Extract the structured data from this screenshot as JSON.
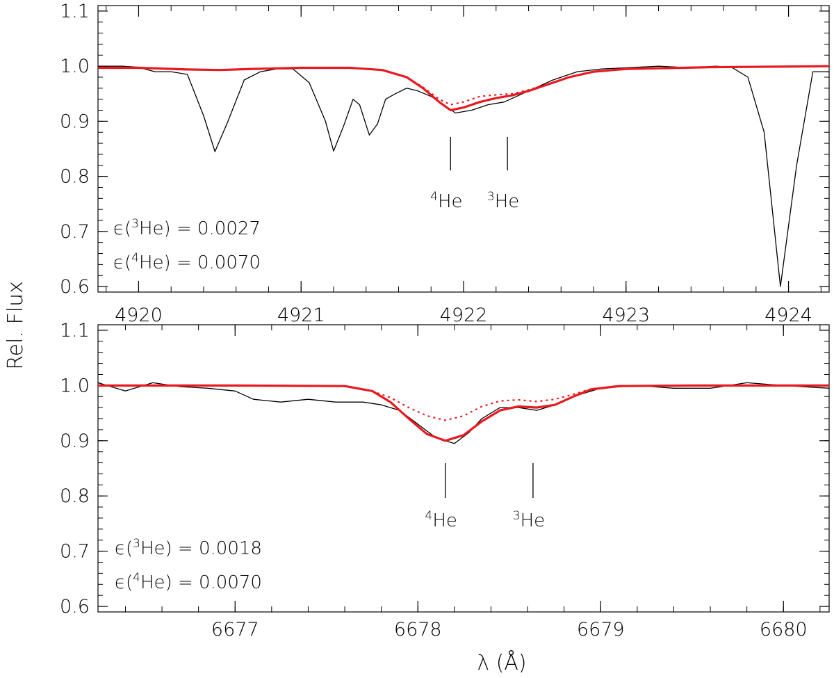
{
  "colors": {
    "observed": "#000000",
    "model": "#e8191f",
    "axis": "#000000",
    "background": "#ffffff"
  },
  "labels": {
    "ylabel": "Rel. Flux",
    "xlabel": "λ  (Å)"
  },
  "chart_data": [
    {
      "type": "line",
      "panel": "top",
      "ylabel": "Rel. Flux",
      "xlim": [
        4919.75,
        4924.25
      ],
      "ylim": [
        0.59,
        1.11
      ],
      "xticks": [
        4920,
        4921,
        4922,
        4923,
        4924
      ],
      "xtick_labels": [
        "4920",
        "4921",
        "4922",
        "4923",
        "4924"
      ],
      "xtick_position": "top",
      "yticks": [
        0.6,
        0.7,
        0.8,
        0.9,
        1.0,
        1.1
      ],
      "ytick_labels": [
        "0.6",
        "0.7",
        "0.8",
        "0.9",
        "1.0",
        "1.1"
      ],
      "line_markers": [
        {
          "x": 4921.92,
          "sup": "4",
          "label": "He"
        },
        {
          "x": 4922.27,
          "sup": "3",
          "label": "He"
        }
      ],
      "annotations": [
        {
          "prefix": "ϵ(",
          "sup": "3",
          "suffix": "He) = 0.0027"
        },
        {
          "prefix": "ϵ(",
          "sup": "4",
          "suffix": "He) = 0.0070"
        }
      ],
      "series": [
        {
          "style": "observed",
          "x": [
            4919.75,
            4919.9,
            4920.0,
            4920.1,
            4920.2,
            4920.3,
            4920.4,
            4920.47,
            4920.55,
            4920.65,
            4920.75,
            4920.85,
            4920.95,
            4921.05,
            4921.15,
            4921.2,
            4921.26,
            4921.32,
            4921.36,
            4921.42,
            4921.47,
            4921.52,
            4921.58,
            4921.65,
            4921.72,
            4921.8,
            4921.88,
            4921.95,
            4922.05,
            4922.15,
            4922.25,
            4922.4,
            4922.55,
            4922.7,
            4922.85,
            4923.0,
            4923.2,
            4923.4,
            4923.55,
            4923.65,
            4923.75,
            4923.85,
            4923.95,
            4924.05,
            4924.15,
            4924.25
          ],
          "y": [
            1.0,
            1.0,
            0.998,
            0.99,
            0.99,
            0.985,
            0.91,
            0.845,
            0.9,
            0.975,
            0.99,
            0.995,
            0.995,
            0.97,
            0.9,
            0.846,
            0.89,
            0.94,
            0.93,
            0.875,
            0.895,
            0.94,
            0.95,
            0.96,
            0.955,
            0.945,
            0.93,
            0.915,
            0.92,
            0.93,
            0.935,
            0.955,
            0.975,
            0.99,
            0.995,
            0.997,
            1.0,
            0.997,
            1.0,
            0.998,
            0.98,
            0.88,
            0.6,
            0.82,
            0.99,
            0.99
          ]
        },
        {
          "style": "model-solid",
          "x": [
            4919.75,
            4920.0,
            4920.3,
            4920.5,
            4920.7,
            4921.0,
            4921.3,
            4921.5,
            4921.65,
            4921.75,
            4921.85,
            4921.92,
            4922.0,
            4922.1,
            4922.2,
            4922.3,
            4922.4,
            4922.5,
            4922.65,
            4922.8,
            4923.0,
            4923.5,
            4924.25
          ],
          "y": [
            0.997,
            0.997,
            0.994,
            0.993,
            0.995,
            0.997,
            0.997,
            0.993,
            0.98,
            0.96,
            0.935,
            0.92,
            0.925,
            0.935,
            0.942,
            0.947,
            0.955,
            0.965,
            0.98,
            0.99,
            0.995,
            0.998,
            1.0
          ]
        },
        {
          "style": "model-dotted",
          "x": [
            4921.5,
            4921.65,
            4921.75,
            4921.85,
            4921.92,
            4922.0,
            4922.1,
            4922.2,
            4922.3,
            4922.4,
            4922.5,
            4922.65,
            4922.8,
            4923.0
          ],
          "y": [
            0.993,
            0.98,
            0.962,
            0.94,
            0.93,
            0.935,
            0.945,
            0.948,
            0.95,
            0.957,
            0.966,
            0.98,
            0.99,
            0.995
          ]
        }
      ]
    },
    {
      "type": "line",
      "panel": "bottom",
      "ylabel": "Rel. Flux",
      "xlabel": "λ  (Å)",
      "xlim": [
        6676.25,
        6680.25
      ],
      "ylim": [
        0.59,
        1.11
      ],
      "xticks": [
        6677,
        6678,
        6679,
        6680
      ],
      "xtick_labels": [
        "6677",
        "6678",
        "6679",
        "6680"
      ],
      "xtick_position": "bottom",
      "yticks": [
        0.6,
        0.7,
        0.8,
        0.9,
        1.0,
        1.1
      ],
      "ytick_labels": [
        "0.6",
        "0.7",
        "0.8",
        "0.9",
        "1.0",
        "1.1"
      ],
      "line_markers": [
        {
          "x": 6678.15,
          "sup": "4",
          "label": "He"
        },
        {
          "x": 6678.63,
          "sup": "3",
          "label": "He"
        }
      ],
      "annotations": [
        {
          "prefix": "ϵ(",
          "sup": "3",
          "suffix": "He) = 0.0018"
        },
        {
          "prefix": "ϵ(",
          "sup": "4",
          "suffix": "He) = 0.0070"
        }
      ],
      "series": [
        {
          "style": "observed",
          "x": [
            6676.25,
            6676.4,
            6676.55,
            6676.7,
            6676.85,
            6677.0,
            6677.1,
            6677.25,
            6677.4,
            6677.55,
            6677.7,
            6677.8,
            6677.9,
            6678.0,
            6678.1,
            6678.2,
            6678.28,
            6678.35,
            6678.45,
            6678.55,
            6678.65,
            6678.75,
            6678.85,
            6679.0,
            6679.2,
            6679.4,
            6679.6,
            6679.8,
            6680.0,
            6680.25
          ],
          "y": [
            1.005,
            0.99,
            1.005,
            0.998,
            0.995,
            0.99,
            0.975,
            0.97,
            0.975,
            0.97,
            0.97,
            0.965,
            0.955,
            0.93,
            0.905,
            0.895,
            0.915,
            0.94,
            0.96,
            0.96,
            0.955,
            0.965,
            0.98,
            0.995,
            1.0,
            0.995,
            0.995,
            1.005,
            1.0,
            0.995
          ]
        },
        {
          "style": "model-solid",
          "x": [
            6676.25,
            6677.0,
            6677.6,
            6677.75,
            6677.85,
            6677.95,
            6678.05,
            6678.15,
            6678.25,
            6678.35,
            6678.45,
            6678.55,
            6678.65,
            6678.75,
            6678.85,
            6678.95,
            6679.1,
            6679.5,
            6680.25
          ],
          "y": [
            1.0,
            1.0,
            0.999,
            0.99,
            0.97,
            0.94,
            0.912,
            0.9,
            0.91,
            0.935,
            0.955,
            0.962,
            0.96,
            0.965,
            0.98,
            0.993,
            0.999,
            1.0,
            1.0
          ]
        },
        {
          "style": "model-dotted",
          "x": [
            6677.6,
            6677.75,
            6677.85,
            6677.95,
            6678.05,
            6678.15,
            6678.25,
            6678.35,
            6678.45,
            6678.55,
            6678.65,
            6678.75,
            6678.85,
            6678.95,
            6679.1
          ],
          "y": [
            0.999,
            0.99,
            0.978,
            0.96,
            0.945,
            0.937,
            0.945,
            0.962,
            0.972,
            0.974,
            0.971,
            0.975,
            0.984,
            0.994,
            0.999
          ]
        }
      ]
    }
  ]
}
